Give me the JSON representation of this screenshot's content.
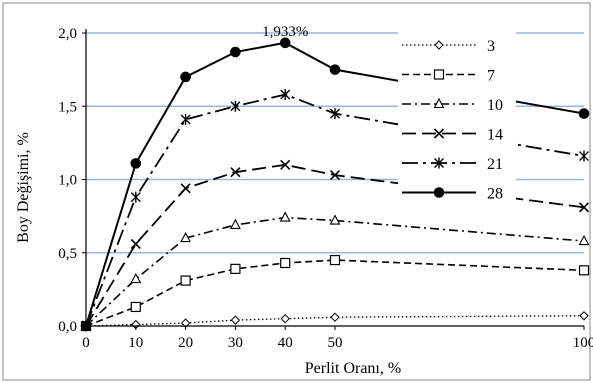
{
  "chart_data": {
    "type": "line",
    "xlabel": "Perlit Oranı, %",
    "ylabel": "Boy Değişimi, %",
    "xlim": [
      0,
      100
    ],
    "ylim": [
      0,
      2.0
    ],
    "x": [
      0,
      10,
      20,
      30,
      40,
      50,
      100
    ],
    "x_ticks": [
      "0",
      "10",
      "20",
      "30",
      "40",
      "50",
      "100"
    ],
    "y_ticks": [
      "0,0",
      "0,5",
      "1,0",
      "1,5",
      "2,0"
    ],
    "grid": "horizontal",
    "legend_position": "right",
    "annotation": {
      "text": "1,933%",
      "x": 40,
      "y": 1.933
    },
    "series": [
      {
        "name": "3",
        "values": [
          0,
          0.01,
          0.02,
          0.04,
          0.05,
          0.06,
          0.07
        ],
        "line_style": "dotted",
        "marker": "diamond"
      },
      {
        "name": "7",
        "values": [
          0,
          0.13,
          0.31,
          0.39,
          0.43,
          0.45,
          0.38
        ],
        "line_style": "dashed",
        "marker": "square"
      },
      {
        "name": "10",
        "values": [
          0,
          0.32,
          0.6,
          0.69,
          0.74,
          0.72,
          0.58
        ],
        "line_style": "dash-dot",
        "marker": "triangle"
      },
      {
        "name": "14",
        "values": [
          0,
          0.56,
          0.94,
          1.05,
          1.1,
          1.03,
          0.81
        ],
        "line_style": "long-dash",
        "marker": "x"
      },
      {
        "name": "21",
        "values": [
          0,
          0.88,
          1.41,
          1.5,
          1.58,
          1.45,
          1.16
        ],
        "line_style": "long-dash-dot",
        "marker": "star"
      },
      {
        "name": "28",
        "values": [
          0,
          1.11,
          1.7,
          1.87,
          1.933,
          1.75,
          1.45
        ],
        "line_style": "solid",
        "marker": "circle"
      }
    ]
  }
}
